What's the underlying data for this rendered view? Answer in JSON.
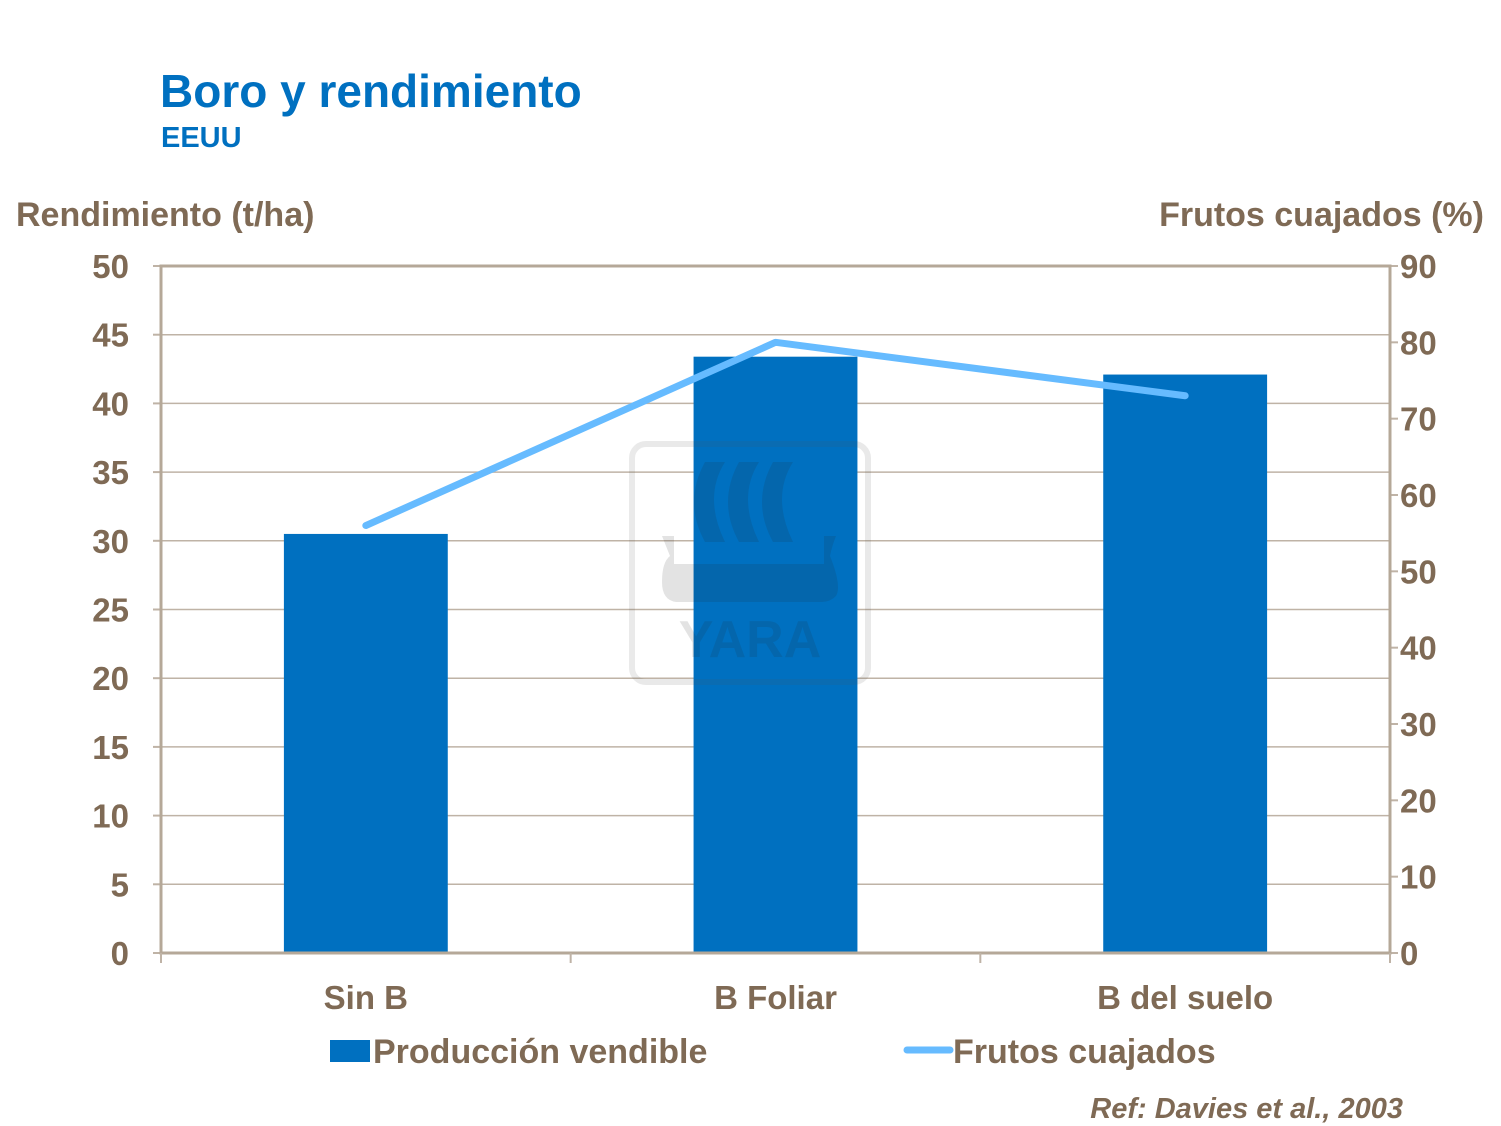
{
  "chart_data": {
    "type": "bar+line",
    "title": "Boro y rendimiento",
    "subtitle": "EEUU",
    "categories": [
      "Sin B",
      "B Foliar",
      "B del suelo"
    ],
    "ylabel": "Rendimiento (t/ha)",
    "y2label": "Frutos cuajados (%)",
    "ylim": [
      0,
      50
    ],
    "y2lim": [
      0,
      90
    ],
    "yticks": [
      0,
      5,
      10,
      15,
      20,
      25,
      30,
      35,
      40,
      45,
      50
    ],
    "y2ticks": [
      0,
      10,
      20,
      30,
      40,
      50,
      60,
      70,
      80,
      90
    ],
    "grid": true,
    "legend_position": "bottom",
    "series": [
      {
        "name": "Producción vendible",
        "type": "bar",
        "axis": "left",
        "color": "#0070C0",
        "values": [
          30.5,
          43.4,
          42.1
        ]
      },
      {
        "name": "Frutos cuajados",
        "type": "line",
        "axis": "right",
        "color": "#66BBFF",
        "values": [
          56,
          80,
          73
        ]
      }
    ],
    "annotation": "Ref: Davies et al., 2003",
    "watermark": "YARA"
  }
}
